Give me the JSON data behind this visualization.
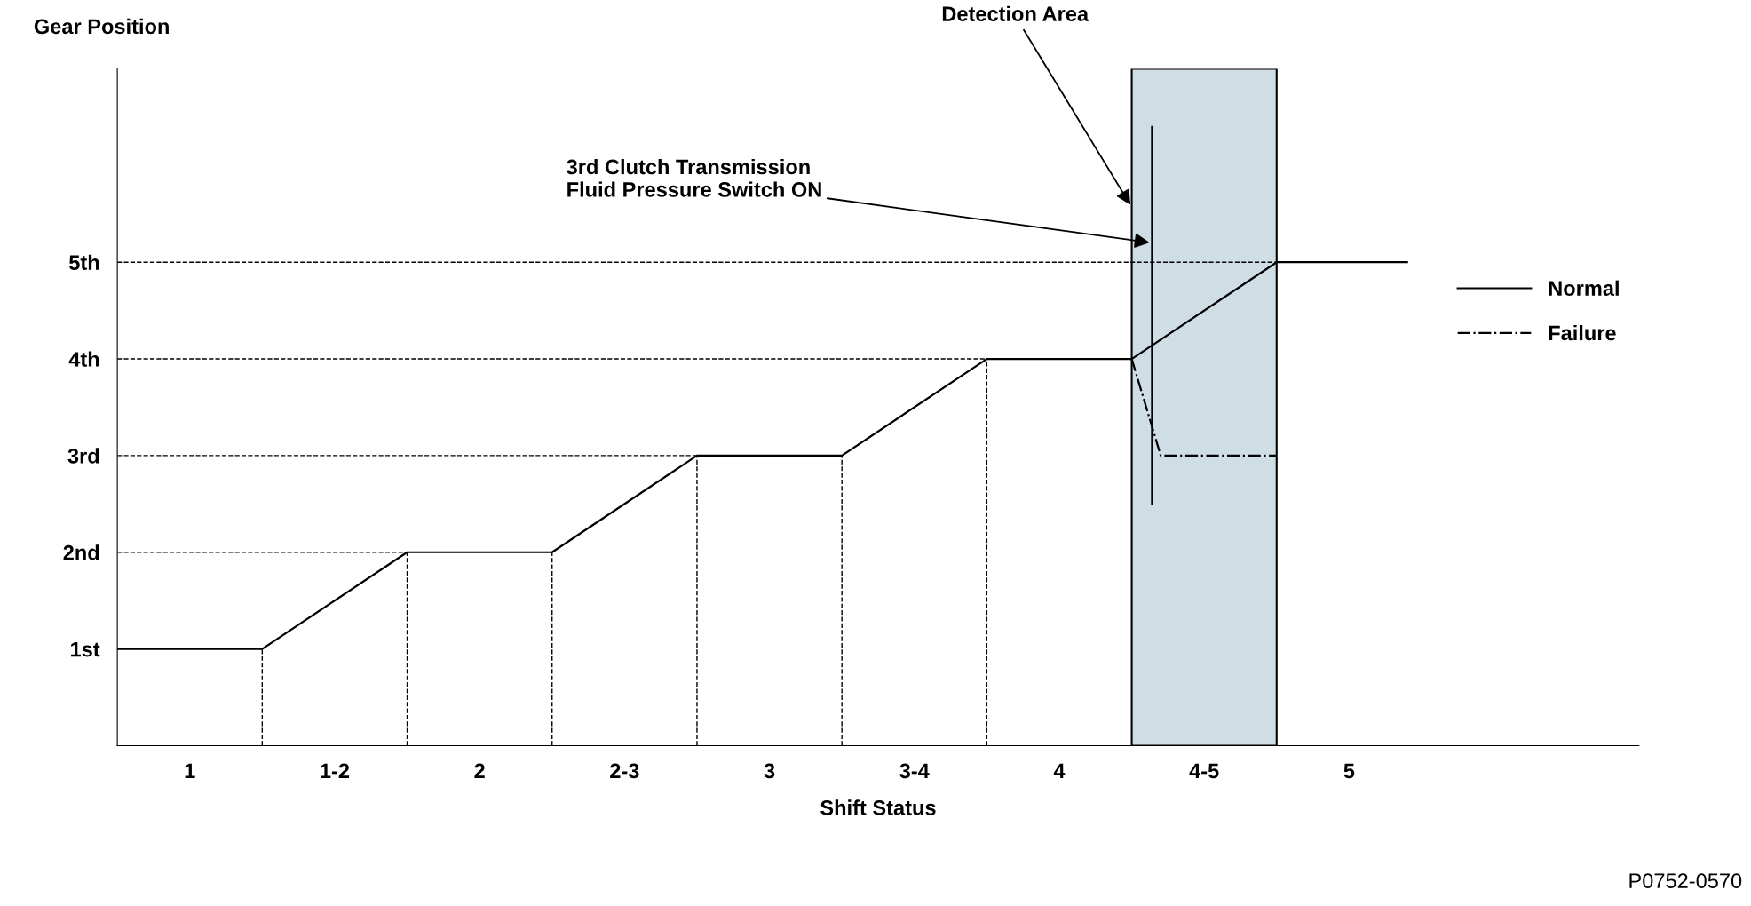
{
  "chart_data": {
    "type": "line",
    "xlabel": "Shift Status",
    "ylabel": "Gear Position",
    "xlim": [
      0.75,
      6.0
    ],
    "ylim": [
      0,
      7
    ],
    "xticks": [
      1,
      {
        "value": 1.5,
        "label": "1-2"
      },
      2,
      {
        "value": 2.5,
        "label": "2-3"
      },
      3,
      {
        "value": 3.5,
        "label": "3-4"
      },
      4,
      {
        "value": 4.5,
        "label": "4-5"
      },
      5
    ],
    "yticks": [
      {
        "value": 1,
        "label": "1st"
      },
      {
        "value": 2,
        "label": "2nd"
      },
      {
        "value": 3,
        "label": "3rd"
      },
      {
        "value": 4,
        "label": "4th"
      },
      {
        "value": 5,
        "label": "5th"
      }
    ],
    "series": [
      {
        "color": "#000000",
        "line_style": "dashed",
        "x": [
          0.75,
          1.75
        ],
        "values": [
          2,
          2
        ]
      },
      {
        "color": "#000000",
        "line_style": "dashed",
        "x": [
          0.75,
          2.75
        ],
        "values": [
          3,
          3
        ]
      },
      {
        "color": "#000000",
        "line_style": "dashed",
        "x": [
          0.75,
          3.75
        ],
        "values": [
          4,
          4
        ]
      },
      {
        "color": "#000000",
        "line_style": "dashed",
        "x": [
          0.75,
          4.75
        ],
        "values": [
          5,
          5
        ]
      },
      {
        "color": "#000000",
        "line_style": "dashed",
        "x": [
          1.25,
          1.25
        ],
        "values": [
          0,
          1
        ]
      },
      {
        "color": "#000000",
        "line_style": "dashed",
        "x": [
          1.75,
          1.75
        ],
        "values": [
          0,
          2
        ]
      },
      {
        "color": "#000000",
        "line_style": "dashed",
        "x": [
          2.25,
          2.25
        ],
        "values": [
          0,
          2
        ]
      },
      {
        "color": "#000000",
        "line_style": "dashed",
        "x": [
          2.75,
          2.75
        ],
        "values": [
          0,
          3
        ]
      },
      {
        "color": "#000000",
        "line_style": "dashed",
        "x": [
          3.25,
          3.25
        ],
        "values": [
          0,
          3
        ]
      },
      {
        "color": "#000000",
        "line_style": "dashed",
        "x": [
          3.75,
          3.75
        ],
        "values": [
          0,
          4
        ]
      },
      {
        "name": "Normal",
        "color": "#000000",
        "line_style": "solid",
        "x": [
          0.75,
          1.25,
          1.75,
          2.25,
          2.75,
          3.25,
          3.75,
          4.25,
          4.75,
          5.2
        ],
        "values": [
          1,
          1,
          2,
          2,
          3,
          3,
          4,
          4,
          5,
          5
        ]
      },
      {
        "name": "Failure",
        "color": "#000000",
        "line_style": "dashdot",
        "x": [
          4.25,
          4.35,
          4.75
        ],
        "values": [
          4,
          3,
          3
        ]
      },
      {
        "color": "#000000",
        "line_style": "solid",
        "x": [
          4.32,
          4.32
        ],
        "values": [
          6.4,
          2.5
        ]
      }
    ],
    "bands": [
      {
        "axis": "x",
        "from": 4.25,
        "to": 4.75,
        "color": "#cfdde5",
        "label": "Detection Area"
      }
    ],
    "annotations": [
      {
        "text": "3rd Clutch Transmission\nFluid Pressure Switch ON",
        "x": 4.32,
        "y": 5.2
      },
      "P0752-0570"
    ],
    "legend": "right"
  }
}
